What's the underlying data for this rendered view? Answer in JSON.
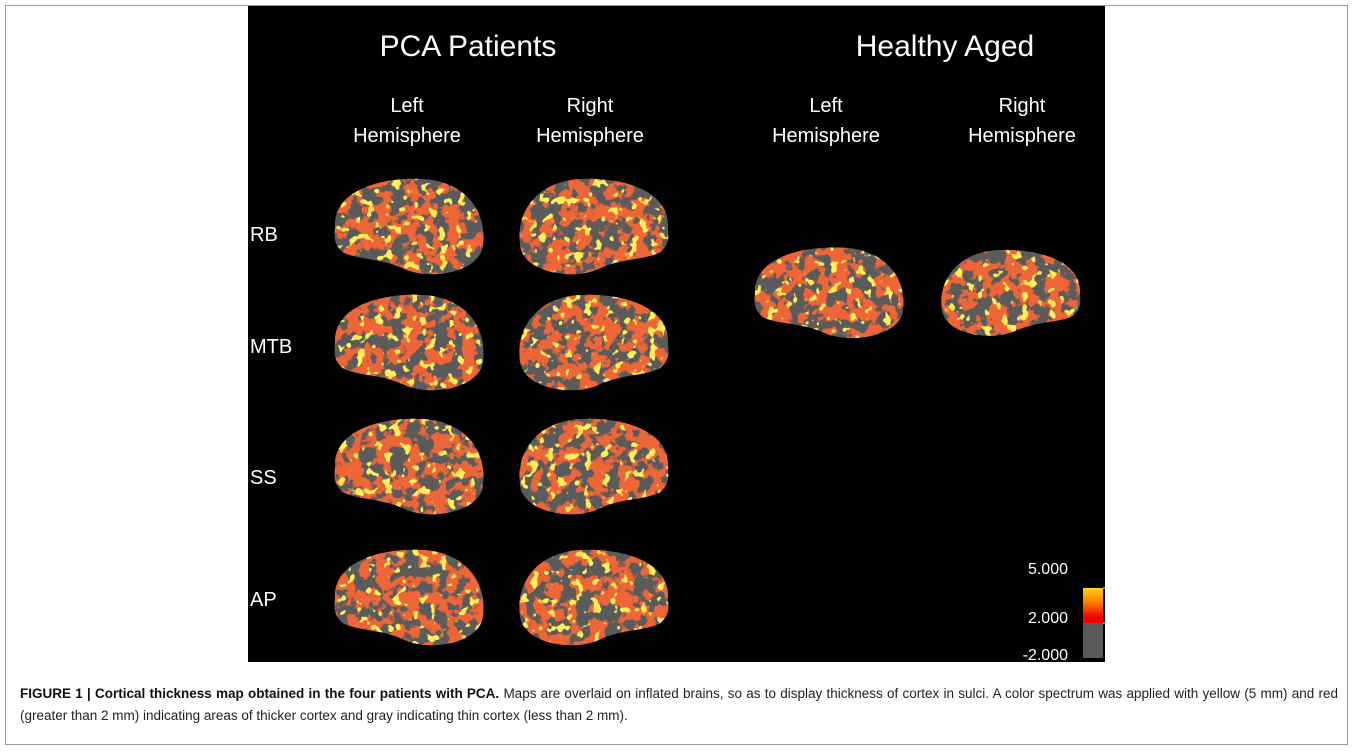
{
  "figure": {
    "group_titles": [
      "PCA Patients",
      "Healthy Aged"
    ],
    "column_headers": [
      [
        "Left",
        "Hemisphere"
      ],
      [
        "Right",
        "Hemisphere"
      ],
      [
        "Left",
        "Hemisphere"
      ],
      [
        "Right",
        "Hemisphere"
      ]
    ],
    "row_labels": [
      "RB",
      "MTB",
      "SS",
      "AP"
    ],
    "colorbar_labels": [
      "5.000",
      "2.000",
      "-2.000"
    ],
    "caption": {
      "label": "FIGURE 1 | Cortical thickness map obtained in the four patients with PCA.",
      "text": "Maps are overlaid on inflated brains, so as to display thickness of cortex in sulci. A color spectrum was applied with yellow (5 mm) and red (greater than 2 mm) indicating areas of thicker cortex and gray indicating thin cortex (less than 2 mm)."
    }
  }
}
